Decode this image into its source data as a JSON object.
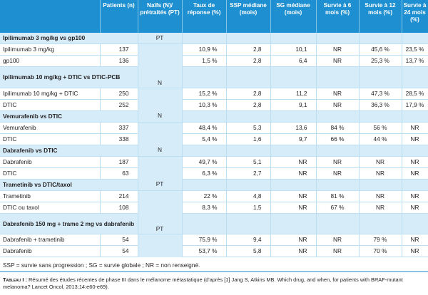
{
  "headers": [
    "",
    "Patients (n)",
    "Naïfs (N)/ prétraités (PT)",
    "Taux de réponse (%)",
    "SSP médiane (mois)",
    "SG médiane (mois)",
    "Survie à 6 mois (%)",
    "Survie à 12 mois (%)",
    "Survie à 24 mois (%)"
  ],
  "groups": [
    {
      "title": "Ipilimumab 3 mg/kg vs gp100",
      "status": "PT",
      "rows": [
        [
          "Ipilimumab 3 mg/kg",
          "137",
          "10,9 %",
          "2,8",
          "10,1",
          "NR",
          "45,6 %",
          "23,5 %"
        ],
        [
          "gp100",
          "136",
          "1,5 %",
          "2,8",
          "6,4",
          "NR",
          "25,3 %",
          "13,7 %"
        ]
      ]
    },
    {
      "title": "Ipilimumab 10 mg/kg + DTIC vs DTIC-PCB",
      "status": "N",
      "rows": [
        [
          "Ipilimumab 10 mg/kg + DTIC",
          "250",
          "15,2 %",
          "2,8",
          "11,2",
          "NR",
          "47,3 %",
          "28,5 %"
        ],
        [
          "DTIC",
          "252",
          "10,3 %",
          "2,8",
          "9,1",
          "NR",
          "36,3 %",
          "17,9 %"
        ]
      ]
    },
    {
      "title": "Vemurafenib vs DTIC",
      "status": "N",
      "rows": [
        [
          "Vemurafenib",
          "337",
          "48,4 %",
          "5,3",
          "13,6",
          "84 %",
          "56 %",
          "NR"
        ],
        [
          "DTIC",
          "338",
          "5,4 %",
          "1,6",
          "9,7",
          "66 %",
          "44 %",
          "NR"
        ]
      ]
    },
    {
      "title": "Dabrafenib vs DTIC",
      "status": "N",
      "rows": [
        [
          "Dabrafenib",
          "187",
          "49,7 %",
          "5,1",
          "NR",
          "NR",
          "NR",
          "NR"
        ],
        [
          "DTIC",
          "63",
          "6,3 %",
          "2,7",
          "NR",
          "NR",
          "NR",
          "NR"
        ]
      ]
    },
    {
      "title": "Trametinib vs DTIC/taxol",
      "status": "PT",
      "rows": [
        [
          "Trametinib",
          "214",
          "22 %",
          "4,8",
          "NR",
          "81 %",
          "NR",
          "NR"
        ],
        [
          "DTIC ou taxol",
          "108",
          "8,3 %",
          "1,5",
          "NR",
          "67 %",
          "NR",
          "NR"
        ]
      ]
    },
    {
      "title": "Dabrafenib 150 mg + trame 2 mg vs dabrafenib",
      "status": "PT",
      "rows": [
        [
          "Dabrafenib + trametinib",
          "54",
          "75,9 %",
          "9,4",
          "NR",
          "NR",
          "79 %",
          "NR"
        ],
        [
          "Dabrafenib",
          "54",
          "53,7 %",
          "5,8",
          "NR",
          "NR",
          "70 %",
          "NR"
        ]
      ]
    }
  ],
  "footnote": "SSP = survie sans progression ; SG = survie globale ; NR = non renseigné.",
  "caption_label": "Tableau I :",
  "caption_text": "Résumé des études récentes de phase III dans le mélanome métastatique (d'après [1] Jang S, Atkins MB. Which drug, and when, for patients with BRAF-mutant melanoma? Lancet Oncol, 2013;14:e60-e69)."
}
